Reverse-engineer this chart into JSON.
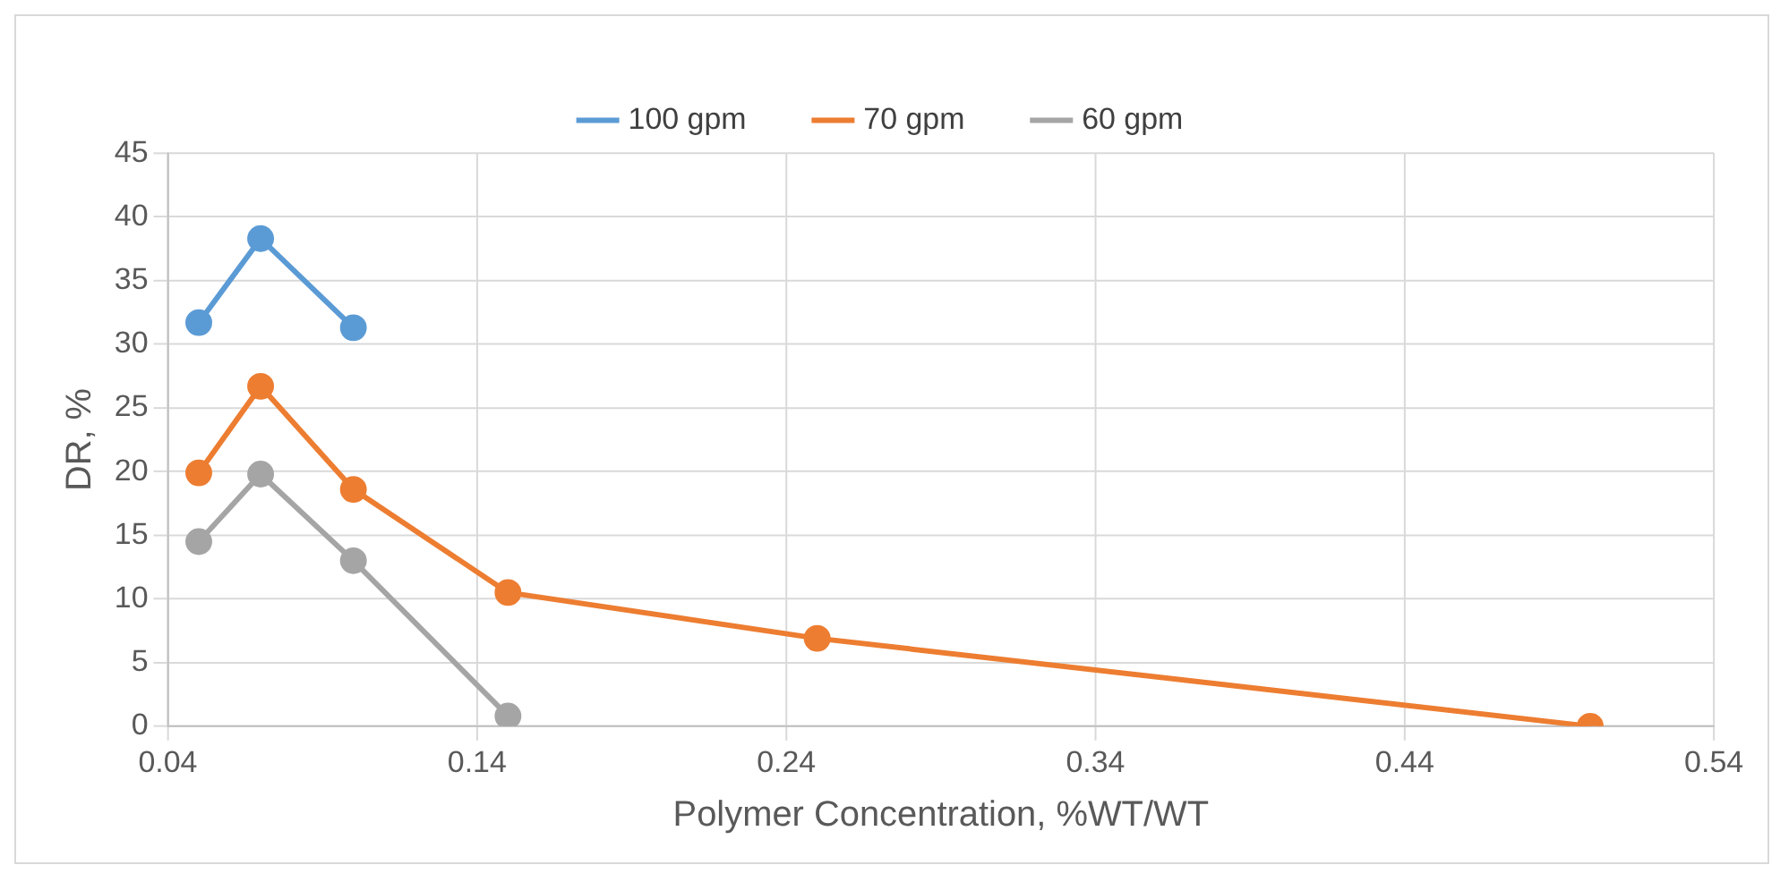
{
  "chart_data": {
    "type": "line",
    "xlabel": "Polymer Concentration, %WT/WT",
    "ylabel": "DR, %",
    "series": [
      {
        "name": "100 gpm",
        "color": "#5b9bd5",
        "x": [
          0.05,
          0.07,
          0.1
        ],
        "values": [
          31.7,
          38.3,
          31.3
        ]
      },
      {
        "name": "70 gpm",
        "color": "#ed7d31",
        "x": [
          0.05,
          0.07,
          0.1,
          0.15,
          0.25,
          0.5
        ],
        "values": [
          19.9,
          26.7,
          18.6,
          10.5,
          6.9,
          0
        ]
      },
      {
        "name": "60 gpm",
        "color": "#a5a5a5",
        "x": [
          0.05,
          0.07,
          0.1,
          0.15
        ],
        "values": [
          14.5,
          19.8,
          13,
          0.8
        ]
      }
    ],
    "xlim": [
      0.04,
      0.54
    ],
    "xticks": [
      0.04,
      0.14,
      0.24,
      0.34,
      0.44,
      0.54
    ],
    "ylim": [
      0,
      45
    ],
    "yticks": [
      0,
      5,
      10,
      15,
      20,
      25,
      30,
      35,
      40,
      45
    ],
    "grid": true,
    "legend": "top",
    "marker": "circle",
    "line_style": "solid"
  }
}
